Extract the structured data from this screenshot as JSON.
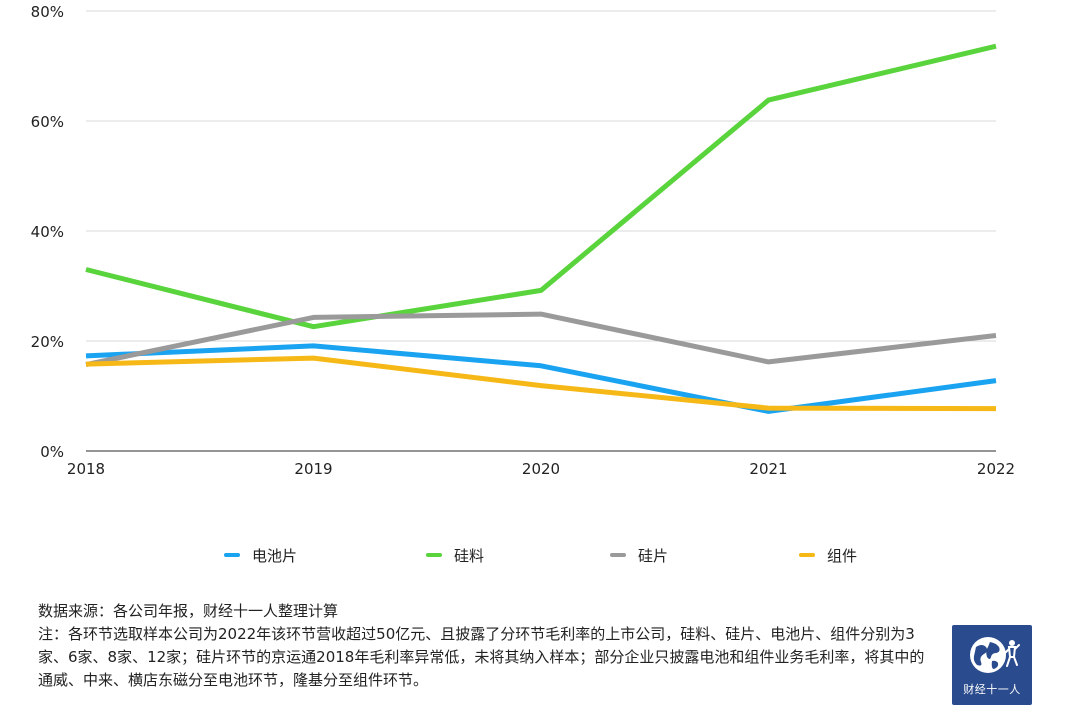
{
  "chart_data": {
    "type": "line",
    "title": "",
    "xlabel": "",
    "ylabel": "",
    "x": [
      "2018",
      "2019",
      "2020",
      "2021",
      "2022"
    ],
    "ylim": [
      0,
      80
    ],
    "yticks": [
      0,
      20,
      40,
      60,
      80
    ],
    "ytick_labels": [
      "0%",
      "20%",
      "40%",
      "60%",
      "80%"
    ],
    "grid": true,
    "legend_position": "bottom",
    "series": [
      {
        "name": "电池片",
        "color": "#1aa3f0",
        "values": [
          17.3,
          19.1,
          15.5,
          7.2,
          12.8
        ]
      },
      {
        "name": "硅料",
        "color": "#5ad43c",
        "values": [
          33.0,
          22.6,
          29.2,
          63.8,
          73.6
        ]
      },
      {
        "name": "硅片",
        "color": "#9a9a9a",
        "values": [
          15.7,
          24.3,
          24.9,
          16.2,
          21.0
        ]
      },
      {
        "name": "组件",
        "color": "#f6b816",
        "values": [
          15.8,
          16.9,
          11.9,
          7.8,
          7.7
        ]
      }
    ]
  },
  "footer": {
    "source": "数据来源：各公司年报，财经十一人整理计算",
    "note": "注：各环节选取样本公司为2022年该环节营收超过50亿元、且披露了分环节毛利率的上市公司，硅料、硅片、电池片、组件分别为3家、6家、8家、12家；硅片环节的京运通2018年毛利率异常低，未将其纳入样本；部分企业只披露电池和组件业务毛利率，将其中的通威、中来、横店东磁分至电池环节，隆基分至组件环节。"
  },
  "logo": {
    "text": "财经十一人",
    "icon": "globe-icon",
    "background": "#2a4b8d"
  }
}
